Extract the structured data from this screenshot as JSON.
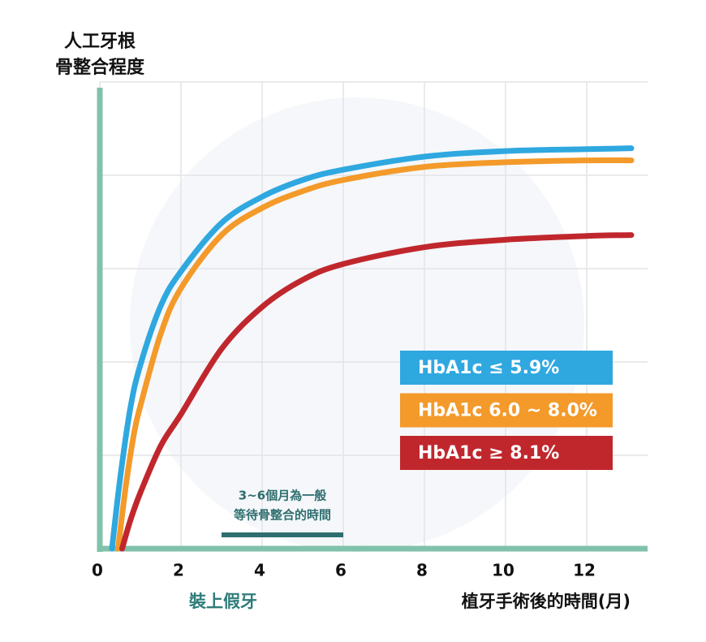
{
  "chart_data": {
    "type": "line",
    "y_title": [
      "人工牙根",
      "骨整合程度"
    ],
    "x_title": "植牙手術後的時間(月)",
    "x_marker_label": "裝上假牙",
    "xlim": [
      0,
      13.5
    ],
    "xticks": [
      0,
      2,
      4,
      6,
      8,
      10,
      12
    ],
    "ylim": [
      0,
      5
    ],
    "yticks": [
      0,
      1,
      2,
      3,
      4,
      5
    ],
    "ytick_labels": false,
    "grid": true,
    "axis_color": "#80c2ab",
    "series": [
      {
        "name": "HbA1c ≤  5.9%",
        "color": "#2fa8e0",
        "x": [
          0.3,
          0.5,
          0.75,
          1,
          1.5,
          2,
          3,
          4,
          5,
          6,
          8,
          10,
          12,
          13.1
        ],
        "values": [
          0,
          0.75,
          1.5,
          1.97,
          2.6,
          2.97,
          3.49,
          3.77,
          3.95,
          4.06,
          4.2,
          4.26,
          4.28,
          4.29
        ]
      },
      {
        "name": "HbA1c  6.0 ~ 8.0%",
        "color": "#f39a2a",
        "x": [
          0.45,
          0.65,
          0.85,
          1,
          1.5,
          2,
          3,
          4,
          5,
          6,
          8,
          10,
          12,
          13.1
        ],
        "values": [
          0,
          0.7,
          1.25,
          1.53,
          2.3,
          2.79,
          3.36,
          3.65,
          3.83,
          3.95,
          4.09,
          4.14,
          4.16,
          4.16
        ]
      },
      {
        "name": "HbA1c ≥  8.1%",
        "color": "#c0272d",
        "x": [
          0.55,
          0.75,
          1,
          1.5,
          2,
          3,
          4,
          5,
          6,
          8,
          10,
          12,
          13.1
        ],
        "values": [
          0,
          0.3,
          0.6,
          1.1,
          1.44,
          2.14,
          2.59,
          2.88,
          3.05,
          3.23,
          3.31,
          3.35,
          3.36
        ]
      }
    ],
    "bracket": {
      "x": [
        3,
        6
      ],
      "label": [
        "3~6個月為一般",
        "等待骨整合的時間"
      ],
      "color": "#2e6e6e"
    }
  }
}
